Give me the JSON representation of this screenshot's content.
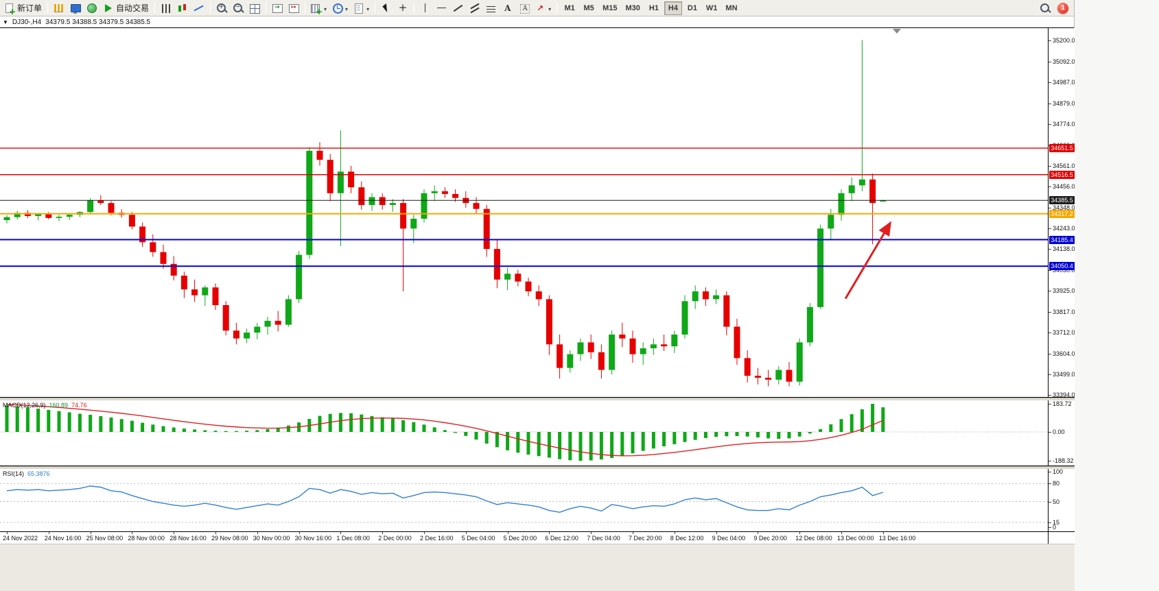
{
  "toolbar": {
    "items": [
      {
        "kind": "button",
        "name": "new-order-button",
        "icon": "doc-plus",
        "label": "新订单"
      },
      {
        "kind": "sep"
      },
      {
        "kind": "button",
        "name": "market-watch-button",
        "icon": "chart-gold"
      },
      {
        "kind": "button",
        "name": "data-window-button",
        "icon": "screen-blue"
      },
      {
        "kind": "button",
        "name": "navigator-button",
        "icon": "globe-green"
      },
      {
        "kind": "button",
        "name": "autotrading-button",
        "icon": "play-green",
        "label": "自动交易"
      },
      {
        "kind": "sep"
      },
      {
        "kind": "button",
        "name": "bar-chart-button",
        "icon": "bars"
      },
      {
        "kind": "button",
        "name": "candlestick-chart-button",
        "icon": "candles"
      },
      {
        "kind": "button",
        "name": "line-chart-button",
        "icon": "linechart"
      },
      {
        "kind": "sep"
      },
      {
        "kind": "button",
        "name": "zoom-in-button",
        "icon": "zoom-in"
      },
      {
        "kind": "button",
        "name": "zoom-out-button",
        "icon": "zoom-out"
      },
      {
        "kind": "button",
        "name": "tile-windows-button",
        "icon": "grid"
      },
      {
        "kind": "sep"
      },
      {
        "kind": "button",
        "name": "auto-scroll-button",
        "icon": "chart-scroll"
      },
      {
        "kind": "button",
        "name": "chart-shift-button",
        "icon": "chart-shift"
      },
      {
        "kind": "sep"
      },
      {
        "kind": "button",
        "name": "new-chart-button",
        "icon": "plus-chart",
        "caret": true
      },
      {
        "kind": "button",
        "name": "periods-button",
        "icon": "clock",
        "caret": true
      },
      {
        "kind": "button",
        "name": "templates-button",
        "icon": "template",
        "caret": true
      },
      {
        "kind": "sep"
      },
      {
        "kind": "button",
        "name": "cursor-button",
        "icon": "cursor"
      },
      {
        "kind": "button",
        "name": "crosshair-button",
        "icon": "crosshair"
      },
      {
        "kind": "sep"
      },
      {
        "kind": "button",
        "name": "vertical-line-button",
        "icon": "vline"
      },
      {
        "kind": "button",
        "name": "horizontal-line-button",
        "icon": "hline"
      },
      {
        "kind": "button",
        "name": "trendline-button",
        "icon": "tline"
      },
      {
        "kind": "button",
        "name": "channel-button",
        "icon": "channel"
      },
      {
        "kind": "button",
        "name": "fibonacci-button",
        "icon": "fibo"
      },
      {
        "kind": "button",
        "name": "text-button",
        "icon": "textA"
      },
      {
        "kind": "button",
        "name": "text-label-button",
        "icon": "label"
      },
      {
        "kind": "button",
        "name": "arrows-button",
        "icon": "arrowsym",
        "caret": true
      },
      {
        "kind": "sep"
      },
      {
        "kind": "tf"
      }
    ],
    "timeframes": [
      "M1",
      "M5",
      "M15",
      "M30",
      "H1",
      "H4",
      "D1",
      "W1",
      "MN"
    ],
    "active_timeframe": "H4",
    "notification_count": "1"
  },
  "chart_header": {
    "one_click_glyph": "▼",
    "symbol": "DJ30-,H4",
    "ohlc": "34379.5 34388.5 34379.5 34385.5"
  },
  "chart_data": {
    "type": "candlestick",
    "symbol": "DJ30-,H4",
    "colors": {
      "up": "#0fa818",
      "down": "#e60000"
    },
    "price_axis": {
      "min": 33384,
      "max": 35263
    },
    "price_ticks": [
      35200.0,
      35092.0,
      34987.0,
      34879.0,
      34774.0,
      34666.0,
      34561.0,
      34456.0,
      34348.0,
      34243.0,
      34138.0,
      34030.0,
      33925.0,
      33817.0,
      33712.0,
      33604.0,
      33499.0,
      33394.0
    ],
    "hlines": [
      {
        "name": "resistance-line-1",
        "price": 34651.5,
        "color": "#e00000",
        "width": 1.4
      },
      {
        "name": "resistance-line-2",
        "price": 34516.5,
        "color": "#e00000",
        "width": 1.4
      },
      {
        "name": "current-price-line",
        "price": 34385.5,
        "color": "#1c1c1c",
        "width": 1
      },
      {
        "name": "pivot-line-orange",
        "price": 34317.2,
        "color": "#f7a800",
        "width": 2
      },
      {
        "name": "support-line-1",
        "price": 34185.4,
        "color": "#0000d8",
        "width": 2
      },
      {
        "name": "support-line-2",
        "price": 34050.4,
        "color": "#0000d8",
        "width": 2
      }
    ],
    "arrow": {
      "from_index": 80.4,
      "from_price": 33885,
      "to_index": 84.6,
      "to_price": 34262,
      "color": "#e02020"
    },
    "candles": [
      [
        34285,
        34310,
        34268,
        34300
      ],
      [
        34300,
        34332,
        34288,
        34322
      ],
      [
        34322,
        34336,
        34295,
        34306
      ],
      [
        34306,
        34320,
        34284,
        34316
      ],
      [
        34316,
        34326,
        34290,
        34296
      ],
      [
        34296,
        34312,
        34280,
        34302
      ],
      [
        34302,
        34318,
        34286,
        34312
      ],
      [
        34312,
        34330,
        34300,
        34326
      ],
      [
        34326,
        34396,
        34318,
        34386
      ],
      [
        34386,
        34412,
        34362,
        34372
      ],
      [
        34372,
        34382,
        34310,
        34322
      ],
      [
        34322,
        34340,
        34298,
        34312
      ],
      [
        34312,
        34326,
        34238,
        34252
      ],
      [
        34252,
        34272,
        34148,
        34172
      ],
      [
        34172,
        34212,
        34098,
        34122
      ],
      [
        34122,
        34160,
        34038,
        34062
      ],
      [
        34062,
        34102,
        33978,
        34002
      ],
      [
        34002,
        34022,
        33888,
        33932
      ],
      [
        33932,
        33982,
        33868,
        33902
      ],
      [
        33902,
        33952,
        33848,
        33942
      ],
      [
        33942,
        33962,
        33828,
        33852
      ],
      [
        33852,
        33872,
        33698,
        33722
      ],
      [
        33722,
        33762,
        33652,
        33682
      ],
      [
        33682,
        33732,
        33658,
        33712
      ],
      [
        33712,
        33762,
        33678,
        33742
      ],
      [
        33742,
        33792,
        33702,
        33772
      ],
      [
        33772,
        33822,
        33718,
        33752
      ],
      [
        33752,
        33902,
        33742,
        33882
      ],
      [
        33882,
        34128,
        33862,
        34108
      ],
      [
        34108,
        34656,
        34088,
        34638
      ],
      [
        34638,
        34682,
        34562,
        34592
      ],
      [
        34592,
        34622,
        34382,
        34422
      ],
      [
        34422,
        34742,
        34152,
        34532
      ],
      [
        34532,
        34562,
        34422,
        34452
      ],
      [
        34452,
        34482,
        34338,
        34362
      ],
      [
        34362,
        34422,
        34332,
        34402
      ],
      [
        34402,
        34422,
        34338,
        34362
      ],
      [
        34362,
        34392,
        34328,
        34372
      ],
      [
        34372,
        34392,
        33922,
        34242
      ],
      [
        34242,
        34312,
        34168,
        34292
      ],
      [
        34292,
        34442,
        34272,
        34422
      ],
      [
        34422,
        34462,
        34382,
        34432
      ],
      [
        34432,
        34452,
        34398,
        34418
      ],
      [
        34418,
        34442,
        34378,
        34398
      ],
      [
        34398,
        34432,
        34348,
        34372
      ],
      [
        34372,
        34402,
        34318,
        34342
      ],
      [
        34342,
        34362,
        34098,
        34138
      ],
      [
        34138,
        34182,
        33938,
        33982
      ],
      [
        33982,
        34042,
        33928,
        34012
      ],
      [
        34012,
        34032,
        33948,
        33972
      ],
      [
        33972,
        33992,
        33898,
        33922
      ],
      [
        33922,
        33952,
        33848,
        33882
      ],
      [
        33882,
        33902,
        33598,
        33652
      ],
      [
        33652,
        33702,
        33478,
        33532
      ],
      [
        33532,
        33622,
        33508,
        33602
      ],
      [
        33602,
        33682,
        33568,
        33662
      ],
      [
        33662,
        33702,
        33578,
        33612
      ],
      [
        33612,
        33652,
        33478,
        33522
      ],
      [
        33522,
        33722,
        33498,
        33702
      ],
      [
        33702,
        33762,
        33638,
        33682
      ],
      [
        33682,
        33722,
        33558,
        33602
      ],
      [
        33602,
        33662,
        33548,
        33632
      ],
      [
        33632,
        33682,
        33598,
        33652
      ],
      [
        33652,
        33702,
        33618,
        33642
      ],
      [
        33642,
        33722,
        33608,
        33702
      ],
      [
        33702,
        33902,
        33682,
        33872
      ],
      [
        33872,
        33952,
        33832,
        33922
      ],
      [
        33922,
        33942,
        33848,
        33882
      ],
      [
        33882,
        33932,
        33858,
        33902
      ],
      [
        33902,
        33922,
        33698,
        33742
      ],
      [
        33742,
        33782,
        33548,
        33582
      ],
      [
        33582,
        33622,
        33458,
        33492
      ],
      [
        33492,
        33532,
        33448,
        33482
      ],
      [
        33482,
        33522,
        33438,
        33472
      ],
      [
        33472,
        33542,
        33448,
        33522
      ],
      [
        33522,
        33562,
        33438,
        33462
      ],
      [
        33462,
        33682,
        33442,
        33662
      ],
      [
        33662,
        33862,
        33642,
        33842
      ],
      [
        33842,
        34262,
        33832,
        34242
      ],
      [
        34242,
        34342,
        34182,
        34312
      ],
      [
        34312,
        34442,
        34282,
        34422
      ],
      [
        34422,
        34502,
        34382,
        34462
      ],
      [
        34462,
        35202,
        34432,
        34492
      ],
      [
        34492,
        34522,
        34162,
        34372
      ],
      [
        34379.5,
        34388.5,
        34379.5,
        34385.5
      ]
    ],
    "time_label_interval": 4,
    "time_labels": [
      "24 Nov 2022",
      "24 Nov 16:00",
      "25 Nov 08:00",
      "28 Nov 00:00",
      "28 Nov 16:00",
      "29 Nov 08:00",
      "30 Nov 00:00",
      "30 Nov 16:00",
      "1 Dec 08:00",
      "2 Dec 00:00",
      "2 Dec 16:00",
      "5 Dec 04:00",
      "5 Dec 20:00",
      "6 Dec 12:00",
      "7 Dec 04:00",
      "7 Dec 20:00",
      "8 Dec 12:00",
      "9 Dec 04:00",
      "9 Dec 20:00",
      "12 Dec 08:00",
      "13 Dec 00:00",
      "13 Dec 16:00"
    ],
    "macd": {
      "label": "MACD(12,26,9)",
      "value_main": "160.89",
      "value_signal": "74.76",
      "scale": [
        183.72,
        0.0,
        -188.32
      ],
      "colors": {
        "histogram": "#0fa818",
        "signal": "#e02020"
      },
      "histogram": [
        172,
        166,
        160,
        152,
        144,
        136,
        128,
        119,
        112,
        103,
        94,
        84,
        73,
        60,
        48,
        38,
        29,
        22,
        16,
        11,
        8,
        6,
        6,
        8,
        12,
        18,
        28,
        42,
        62,
        85,
        105,
        118,
        124,
        122,
        114,
        104,
        96,
        88,
        77,
        64,
        48,
        30,
        12,
        -6,
        -26,
        -50,
        -76,
        -100,
        -120,
        -136,
        -148,
        -158,
        -168,
        -178,
        -185,
        -188.32,
        -186,
        -180,
        -170,
        -156,
        -140,
        -124,
        -108,
        -94,
        -80,
        -66,
        -52,
        -40,
        -32,
        -28,
        -27,
        -30,
        -36,
        -42,
        -45,
        -42,
        -30,
        -10,
        18,
        50,
        84,
        116,
        148,
        183.72,
        160.89
      ],
      "signal": [
        180,
        177,
        173.5,
        169.5,
        165,
        160,
        154.5,
        148.5,
        142.5,
        136,
        129,
        121.5,
        113.5,
        104.5,
        95,
        85.5,
        76,
        67,
        58.5,
        50.5,
        43.5,
        37.5,
        32.5,
        28.5,
        26,
        24.5,
        25,
        28,
        33.5,
        42,
        52.5,
        63.5,
        73.5,
        81.5,
        87,
        90,
        91,
        90.5,
        88.5,
        84.5,
        78.5,
        70.5,
        60.5,
        49.5,
        37,
        23,
        7,
        -10,
        -27.5,
        -45,
        -61.5,
        -77,
        -91.5,
        -105.5,
        -118.5,
        -130,
        -140,
        -148,
        -153.5,
        -156,
        -155.5,
        -152.5,
        -147.5,
        -141,
        -133.5,
        -125,
        -116,
        -106.5,
        -97.5,
        -89,
        -81.5,
        -75.5,
        -71,
        -68,
        -66.5,
        -65.5,
        -63,
        -57.5,
        -48.5,
        -36.5,
        -21.5,
        -3.5,
        17.5,
        46.5,
        74.76
      ]
    },
    "rsi": {
      "label": "RSI(14)",
      "value": "65.3876",
      "levels": [
        100,
        80,
        50,
        15,
        0
      ],
      "level_lines": [
        80,
        50,
        15
      ],
      "color": "#2f7fd4",
      "values": [
        68,
        70,
        69,
        70,
        68,
        69,
        70,
        72,
        76,
        74,
        68,
        66,
        60,
        55,
        50,
        47,
        44,
        42,
        44,
        47,
        44,
        40,
        37,
        40,
        43,
        46,
        44,
        50,
        58,
        72,
        70,
        64,
        70,
        67,
        62,
        65,
        63,
        64,
        56,
        60,
        65,
        66,
        65,
        63,
        61,
        58,
        51,
        45,
        48,
        46,
        44,
        41,
        35,
        32,
        38,
        42,
        39,
        34,
        45,
        42,
        38,
        41,
        43,
        42,
        46,
        53,
        56,
        53,
        55,
        48,
        41,
        36,
        35,
        35,
        38,
        36,
        44,
        50,
        58,
        61,
        65,
        68,
        74,
        60,
        65.39
      ]
    }
  }
}
